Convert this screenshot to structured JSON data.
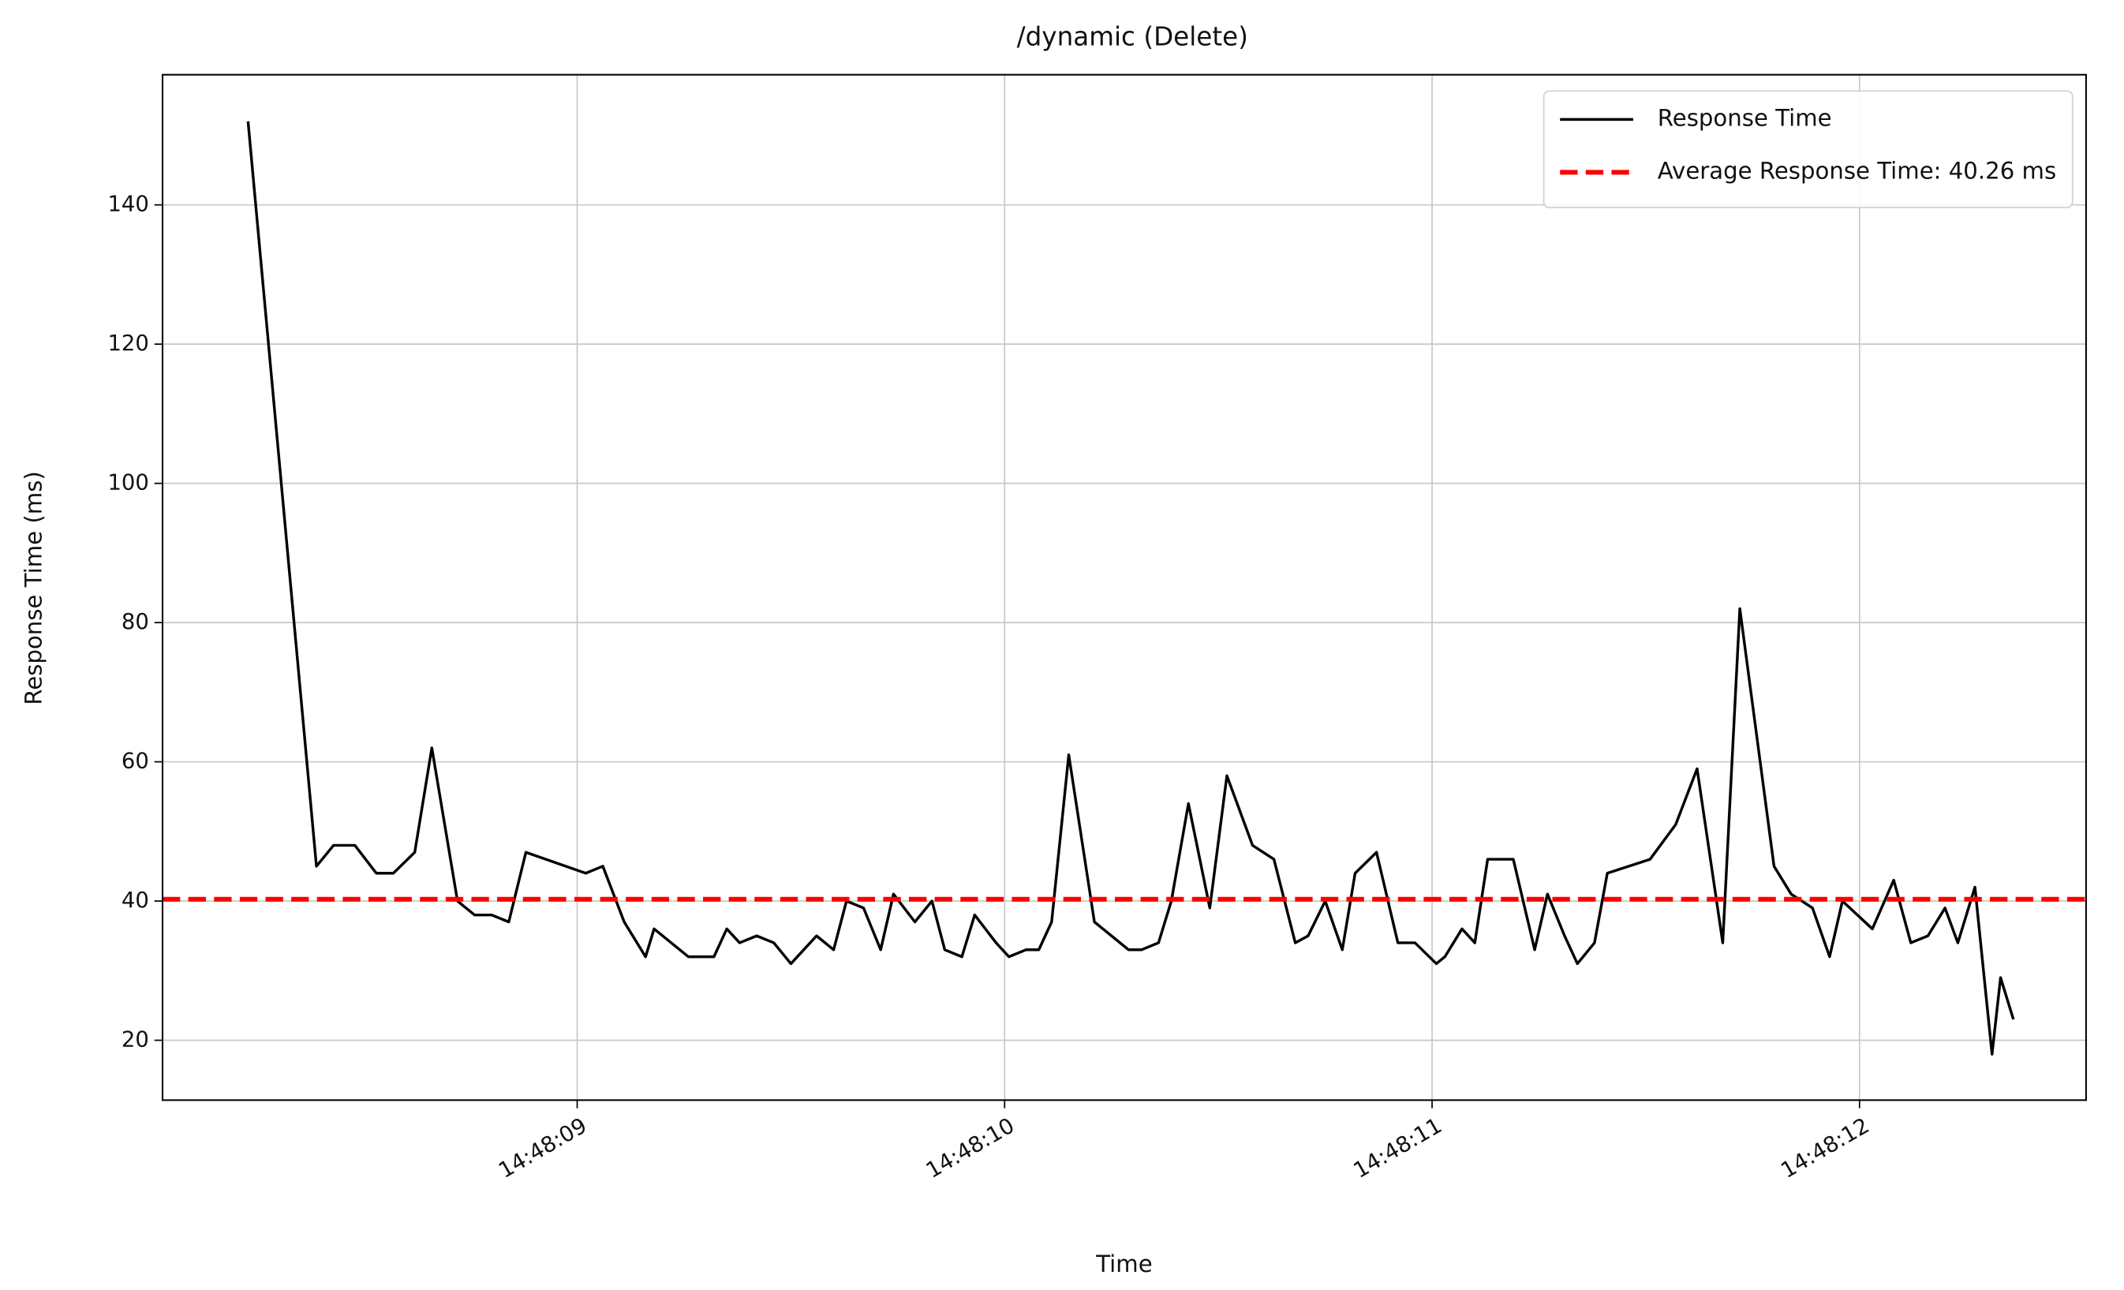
{
  "chart_data": {
    "type": "line",
    "title": "/dynamic (Delete)",
    "x_label": "Time",
    "y_label": "Response Time (ms)",
    "series": [
      {
        "name": "Response Time",
        "color": "#000000",
        "x": [
          8.23,
          8.39,
          8.43,
          8.48,
          8.53,
          8.57,
          8.62,
          8.66,
          8.72,
          8.76,
          8.8,
          8.84,
          8.88,
          9.02,
          9.06,
          9.11,
          9.16,
          9.18,
          9.22,
          9.26,
          9.32,
          9.35,
          9.38,
          9.42,
          9.46,
          9.5,
          9.56,
          9.6,
          9.63,
          9.67,
          9.71,
          9.74,
          9.79,
          9.83,
          9.86,
          9.9,
          9.93,
          9.98,
          10.01,
          10.05,
          10.08,
          10.11,
          10.15,
          10.21,
          10.25,
          10.29,
          10.32,
          10.36,
          10.39,
          10.43,
          10.48,
          10.52,
          10.58,
          10.63,
          10.68,
          10.71,
          10.75,
          10.79,
          10.82,
          10.87,
          10.92,
          10.96,
          11.01,
          11.03,
          11.07,
          11.1,
          11.13,
          11.19,
          11.24,
          11.27,
          11.31,
          11.34,
          11.38,
          11.41,
          11.51,
          11.57,
          11.62,
          11.68,
          11.72,
          11.8,
          11.84,
          11.89,
          11.93,
          11.96,
          12.03,
          12.08,
          12.12,
          12.16,
          12.2,
          12.23,
          12.27,
          12.31,
          12.33,
          12.36
        ],
        "values": [
          152,
          45,
          48,
          48,
          44,
          44,
          47,
          62,
          40,
          38,
          38,
          37,
          47,
          44,
          45,
          37,
          32,
          36,
          34,
          32,
          32,
          36,
          34,
          35,
          34,
          31,
          35,
          33,
          40,
          39,
          33,
          41,
          37,
          40,
          33,
          32,
          38,
          34,
          32,
          33,
          33,
          37,
          61,
          37,
          35,
          33,
          33,
          34,
          40,
          54,
          39,
          58,
          48,
          46,
          34,
          35,
          40,
          33,
          44,
          47,
          34,
          34,
          31,
          32,
          36,
          34,
          46,
          46,
          33,
          41,
          35,
          31,
          34,
          44,
          46,
          51,
          59,
          34,
          82,
          45,
          41,
          39,
          32,
          40,
          36,
          43,
          34,
          35,
          39,
          34,
          42,
          18,
          29,
          23
        ]
      }
    ],
    "reference_lines": [
      {
        "name": "Average Response Time: 40.26 ms",
        "value": 40.26,
        "color": "#ff0000"
      }
    ],
    "xlim": [
      8.03,
      12.53
    ],
    "ylim": [
      11.4,
      158.7
    ],
    "xticks": [
      {
        "value": 9,
        "label": "14:48:09"
      },
      {
        "value": 10,
        "label": "14:48:10"
      },
      {
        "value": 11,
        "label": "14:48:11"
      },
      {
        "value": 12,
        "label": "14:48:12"
      }
    ],
    "yticks": [
      20,
      40,
      60,
      80,
      100,
      120,
      140
    ],
    "grid": true,
    "legend": "upper right"
  }
}
